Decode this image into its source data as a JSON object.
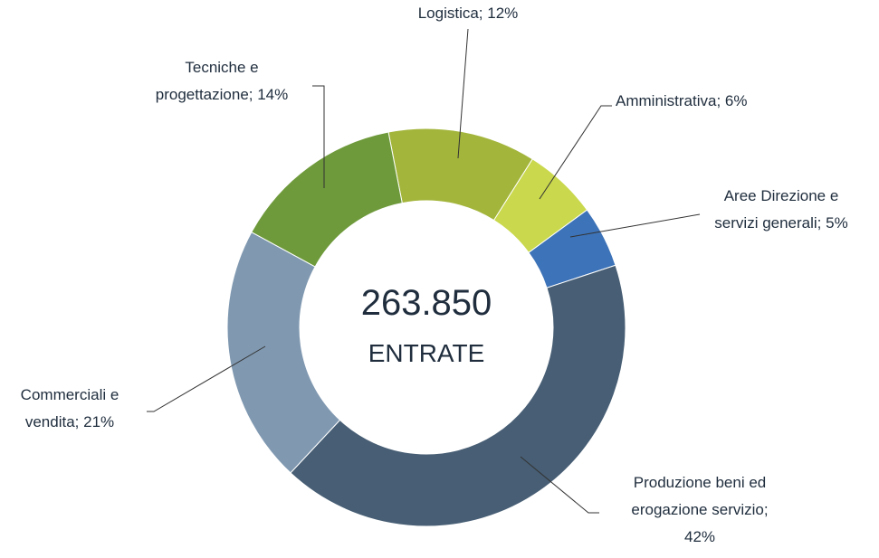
{
  "chart_data": {
    "type": "donut",
    "categories": [
      "Logistica; 12%",
      "Amministrativa; 6%",
      "Aree Direzione e\nservizi generali; 5%",
      "Produzione beni ed\nerogazione servizio;\n42%",
      "Commerciali e\nvendita; 21%",
      "Tecniche e\nprogettazione; 14%"
    ],
    "values": [
      12,
      6,
      5,
      42,
      21,
      14
    ],
    "colors": [
      "#a4b53c",
      "#c9d84c",
      "#3d73b8",
      "#475e74",
      "#8099b1",
      "#6e9a3b"
    ],
    "center_text": [
      "263.850",
      "ENTRATE"
    ]
  }
}
